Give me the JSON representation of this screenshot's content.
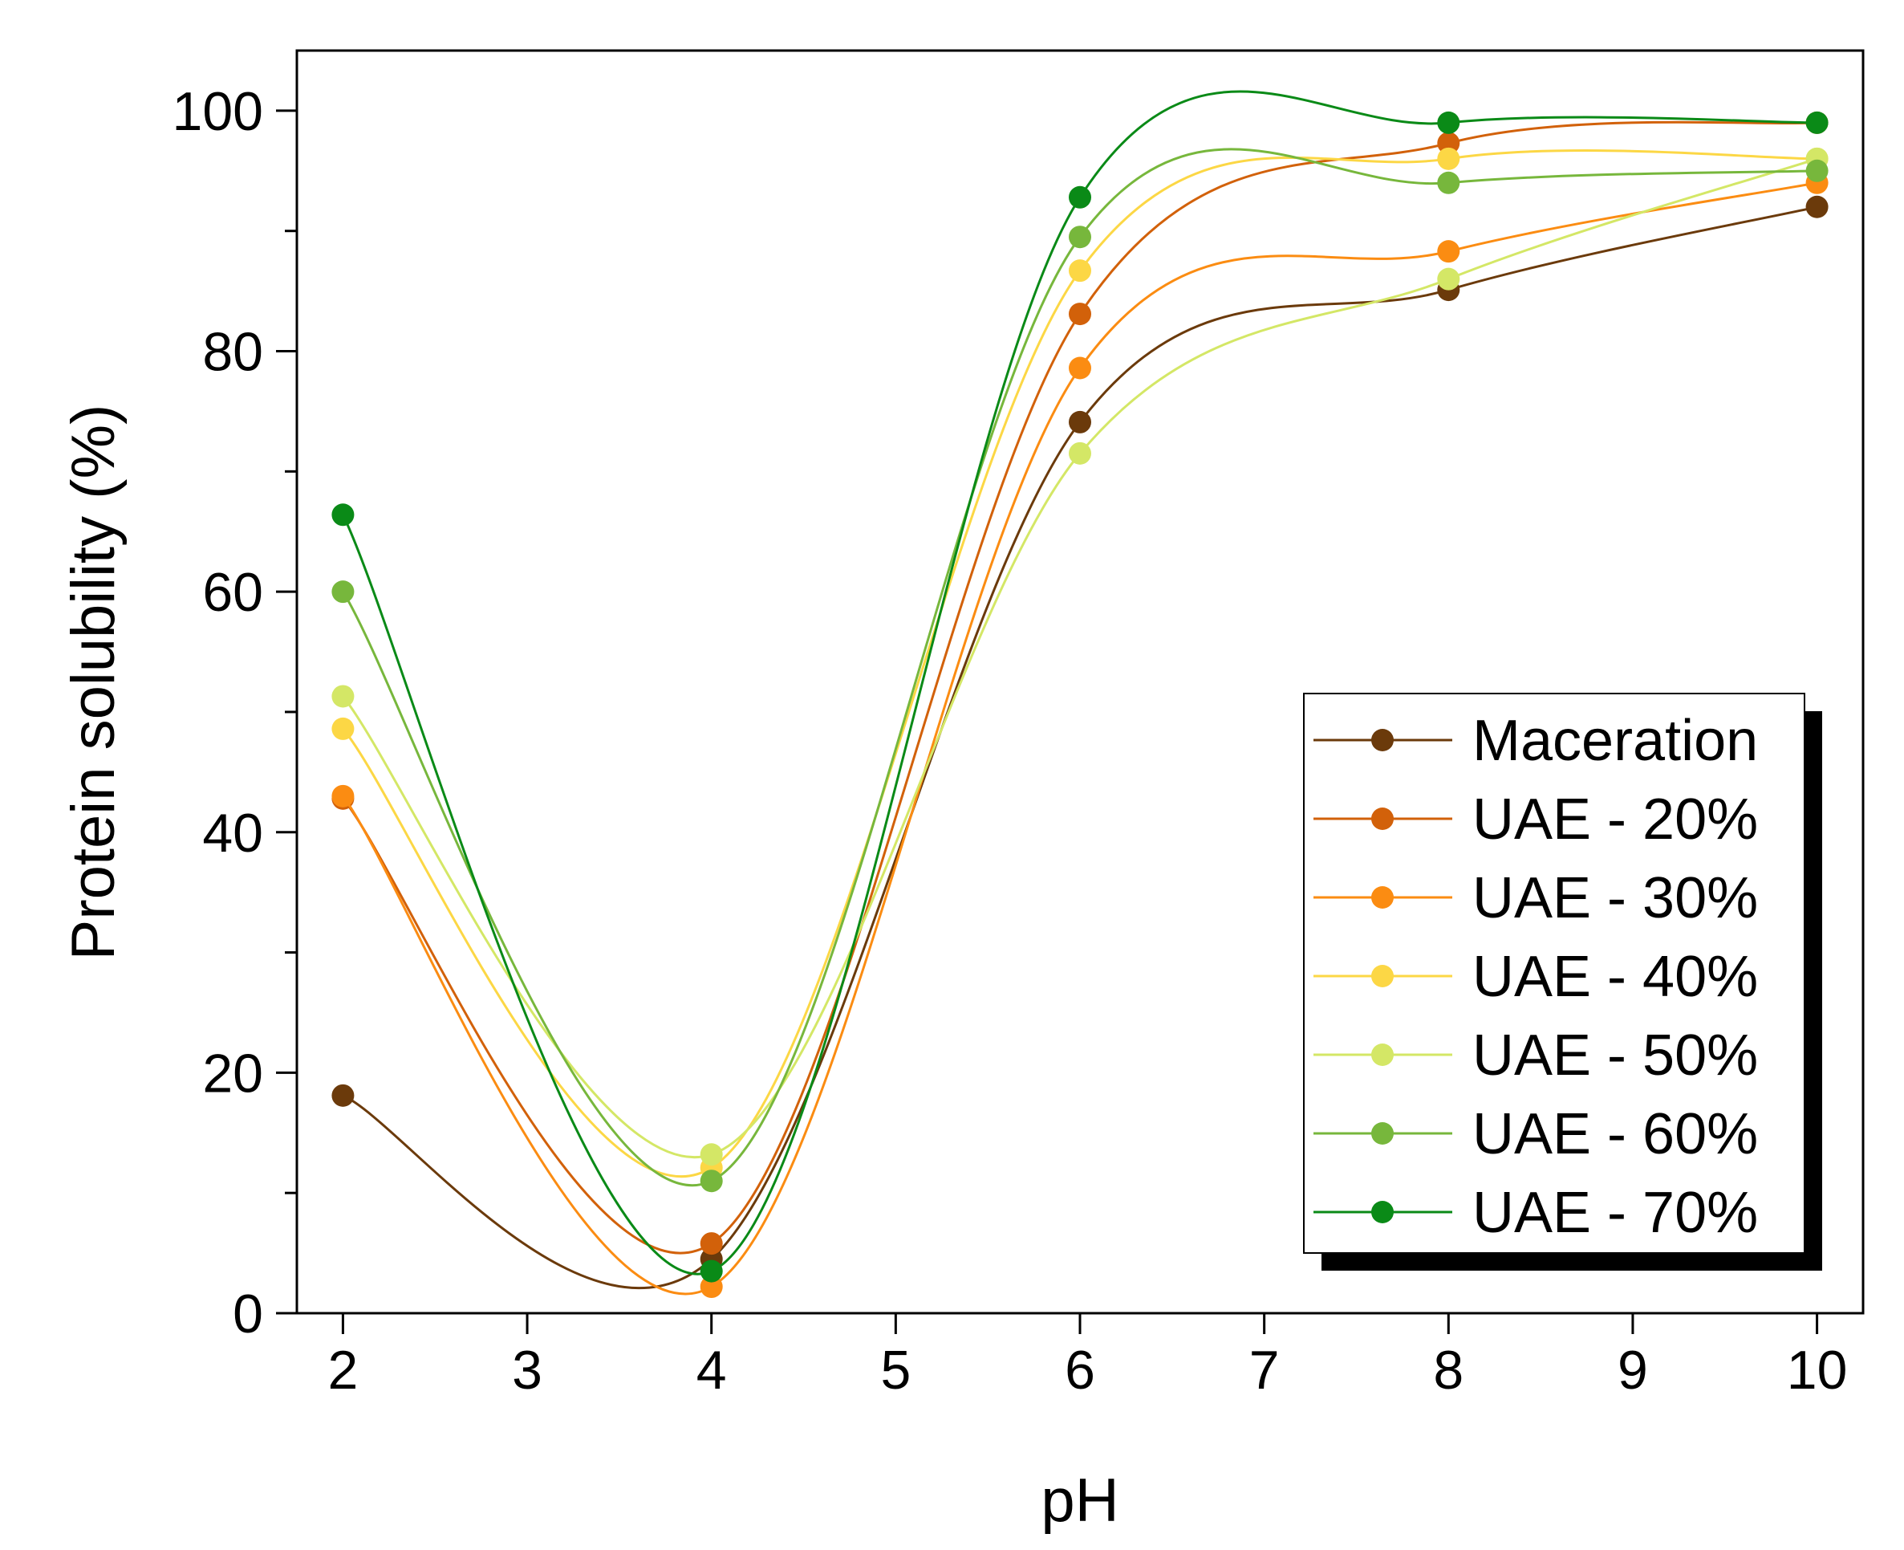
{
  "chart_data": {
    "type": "line",
    "title": "",
    "xlabel": "pH",
    "ylabel": "Protein solubility (%)",
    "xlim": [
      1.75,
      10.25
    ],
    "ylim": [
      0,
      105
    ],
    "x_ticks": [
      2,
      3,
      4,
      5,
      6,
      7,
      8,
      9,
      10
    ],
    "x_tick_labels": [
      "2",
      "3",
      "4",
      "5",
      "6",
      "7",
      "8",
      "9",
      "10"
    ],
    "y_ticks": [
      0,
      20,
      40,
      60,
      80,
      100
    ],
    "y_tick_labels": [
      "0",
      "20",
      "40",
      "60",
      "80",
      "100"
    ],
    "y_minor_ticks": [
      10,
      30,
      50,
      70,
      90
    ],
    "grid": false,
    "legend_position": "bottom-right",
    "x": [
      2,
      4,
      6,
      8,
      10
    ],
    "series": [
      {
        "name": "Maceration",
        "color": "#6b3a0b",
        "values": [
          18.1,
          4.5,
          74.1,
          85.1,
          92.0
        ]
      },
      {
        "name": "UAE - 20%",
        "color": "#d2610a",
        "values": [
          42.8,
          5.8,
          83.1,
          97.3,
          99.0
        ]
      },
      {
        "name": "UAE - 30%",
        "color": "#fb8c12",
        "values": [
          43.0,
          2.2,
          78.6,
          88.3,
          94.0
        ]
      },
      {
        "name": "UAE - 40%",
        "color": "#fcd745",
        "values": [
          48.6,
          12.1,
          86.7,
          96.0,
          96.0
        ]
      },
      {
        "name": "UAE - 50%",
        "color": "#d4e766",
        "values": [
          51.3,
          13.2,
          71.5,
          86.0,
          96.0
        ]
      },
      {
        "name": "UAE - 60%",
        "color": "#77b73c",
        "values": [
          60.0,
          11.0,
          89.5,
          94.0,
          95.0
        ]
      },
      {
        "name": "UAE - 70%",
        "color": "#0a8a17",
        "values": [
          66.4,
          3.5,
          92.8,
          99.0,
          99.0
        ]
      }
    ]
  }
}
